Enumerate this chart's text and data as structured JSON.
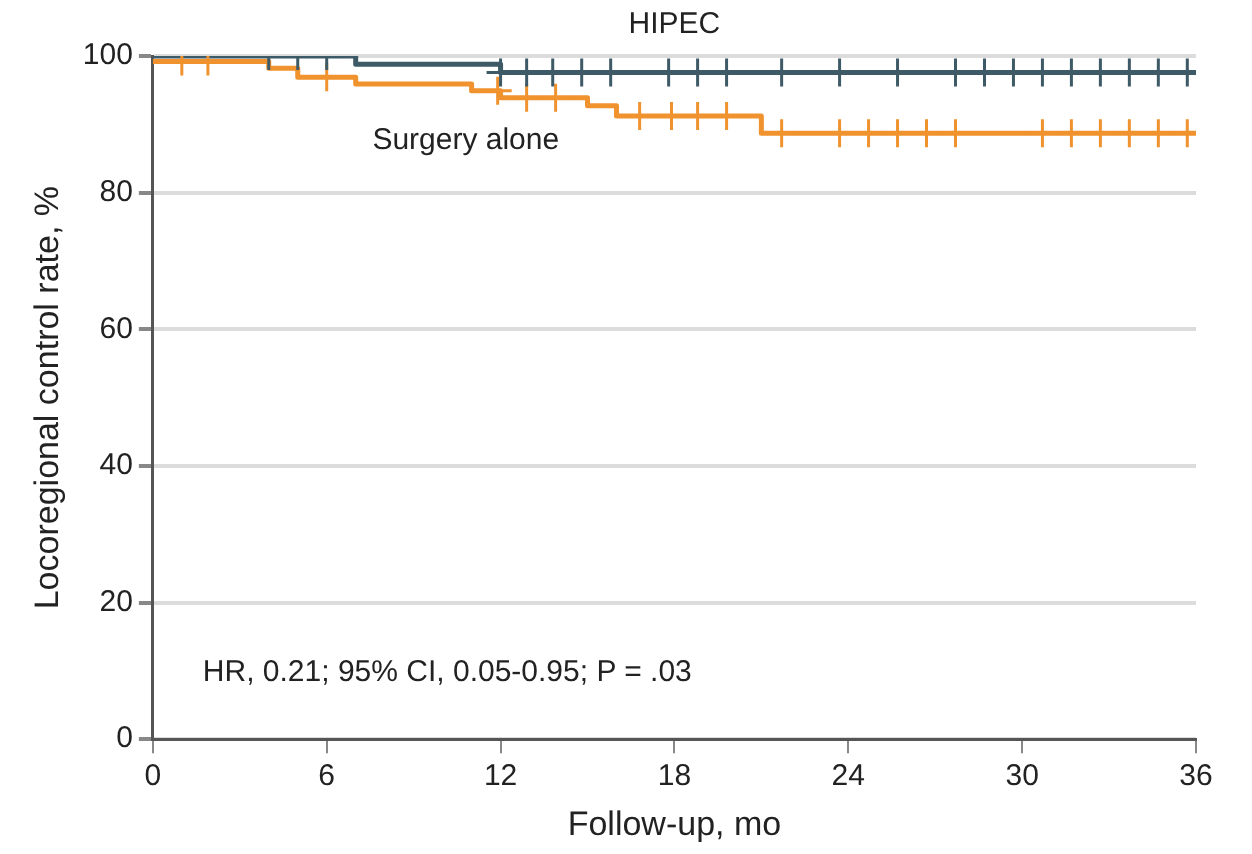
{
  "chart_data": {
    "type": "step",
    "xlabel": "Follow-up, mo",
    "ylabel": "Locoregional control rate, %",
    "xlim": [
      0,
      36
    ],
    "xticks": [
      0,
      6,
      12,
      18,
      24,
      30,
      36
    ],
    "ylim": [
      0,
      100
    ],
    "yticks": [
      0,
      20,
      40,
      60,
      80,
      100
    ],
    "grid": "y",
    "legend": false,
    "annotations": [
      "HR, 0.21; 95% CI, 0.05-0.95; P = .03"
    ],
    "series": [
      {
        "name": "HIPEC",
        "color": "#3d5a66",
        "marker": "none",
        "x": [
          0,
          7,
          12,
          36
        ],
        "values": [
          100,
          98.8,
          97.6,
          97.6
        ]
      },
      {
        "name": "Surgery alone",
        "color": "#f0922e",
        "marker": "none",
        "x": [
          0,
          4,
          5,
          7,
          11,
          12,
          15,
          16,
          21,
          36
        ],
        "values": [
          99.2,
          98.2,
          96.9,
          95.9,
          94.9,
          93.9,
          92.7,
          91.2,
          88.7,
          88.7
        ]
      },
      {
        "type": "scatter",
        "color": "#3d5a66",
        "marker": "cross",
        "x": [
          4,
          5,
          6,
          12,
          12.9,
          13.8,
          14.8,
          15.8,
          17.8,
          18.8,
          19.8,
          21.7,
          23.7,
          25.7,
          27.7,
          28.7,
          29.7,
          30.7,
          31.7,
          32.7,
          33.7,
          34.7,
          35.7
        ],
        "values": [
          100,
          100,
          100,
          97.6,
          97.6,
          97.6,
          97.6,
          97.6,
          97.6,
          97.6,
          97.6,
          97.6,
          97.6,
          97.6,
          97.6,
          97.6,
          97.6,
          97.6,
          97.6,
          97.6,
          97.6,
          97.6,
          97.6
        ]
      },
      {
        "type": "scatter",
        "color": "#f0922e",
        "marker": "cross",
        "x": [
          1,
          1.9,
          6,
          11.9,
          12.9,
          13.9,
          16.8,
          17.9,
          18.8,
          19.8,
          21.7,
          23.7,
          24.7,
          25.7,
          26.7,
          27.7,
          30.7,
          31.7,
          32.7,
          33.7,
          34.7,
          35.7
        ],
        "values": [
          99.2,
          99.2,
          96.9,
          94.9,
          93.9,
          93.9,
          91.2,
          91.2,
          91.2,
          91.2,
          88.7,
          88.7,
          88.7,
          88.7,
          88.7,
          88.7,
          88.7,
          88.7,
          88.7,
          88.7,
          88.7,
          88.7
        ]
      }
    ]
  }
}
